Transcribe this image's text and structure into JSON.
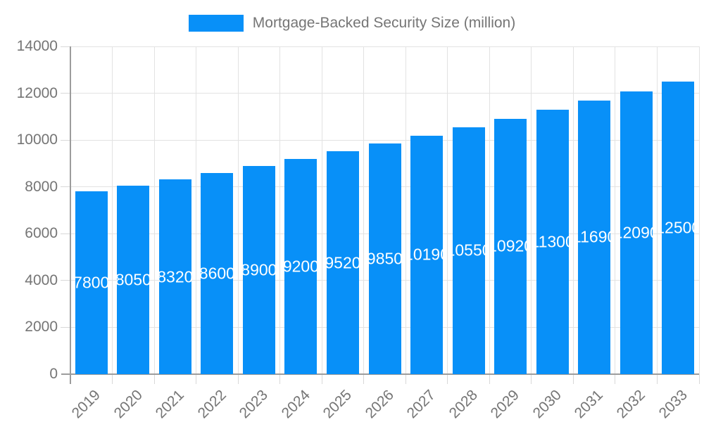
{
  "legend": {
    "label": "Mortgage-Backed Security Size (million)"
  },
  "colors": {
    "bar": "#0890f8",
    "grid": "#e2e2e2",
    "tick": "#d8d8d8",
    "axis": "#9c9c9c",
    "text": "#757575",
    "bar_label": "#ffffff",
    "background": "#ffffff"
  },
  "chart_data": {
    "type": "bar",
    "title": "Mortgage-Backed Security Size (million)",
    "categories": [
      "2019",
      "2020",
      "2021",
      "2022",
      "2023",
      "2024",
      "2025",
      "2026",
      "2027",
      "2028",
      "2029",
      "2030",
      "2031",
      "2032",
      "2033"
    ],
    "values": [
      7800,
      8050,
      8320,
      8600,
      8900,
      9200,
      9520,
      9850,
      10190,
      10550,
      10920,
      11300,
      11690,
      12090,
      12500
    ],
    "series": [
      {
        "name": "Mortgage-Backed Security Size (million)",
        "values": [
          7800,
          8050,
          8320,
          8600,
          8900,
          9200,
          9520,
          9850,
          10190,
          10550,
          10920,
          11300,
          11690,
          12090,
          12500
        ]
      }
    ],
    "xlabel": "",
    "ylabel": "",
    "ylim": [
      0,
      14000
    ],
    "yticks": [
      0,
      2000,
      4000,
      6000,
      8000,
      10000,
      12000,
      14000
    ],
    "grid": true,
    "legend_position": "top",
    "bar_value_labels": true,
    "x_label_rotation_deg": -45
  }
}
